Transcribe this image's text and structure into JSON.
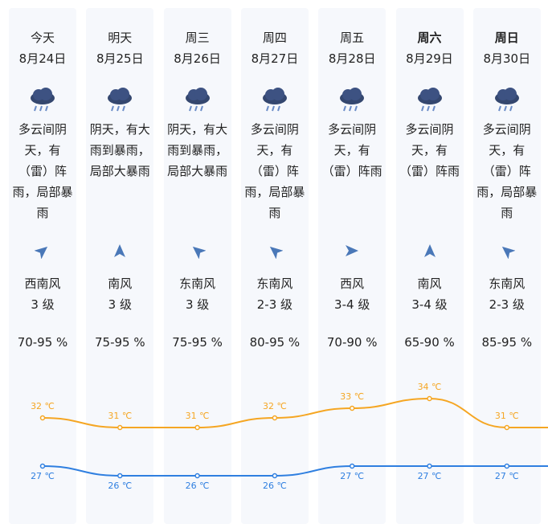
{
  "days": [
    {
      "weekday": "今天",
      "date": "8月24日",
      "weather": [
        "多云间阴",
        "天，有",
        "（雷）阵",
        "雨，局部暴",
        "雨"
      ],
      "wind_direction": "西南风",
      "wind_level": "3 级",
      "humidity": "70-95 %"
    },
    {
      "weekday": "明天",
      "date": "8月25日",
      "weather": [
        "阴天，有大",
        "雨到暴雨，",
        "局部大暴雨"
      ],
      "wind_direction": "南风",
      "wind_level": "3 级",
      "humidity": "75-95 %"
    },
    {
      "weekday": "周三",
      "date": "8月26日",
      "weather": [
        "阴天，有大",
        "雨到暴雨，",
        "局部大暴雨"
      ],
      "wind_direction": "东南风",
      "wind_level": "3 级",
      "humidity": "75-95 %"
    },
    {
      "weekday": "周四",
      "date": "8月27日",
      "weather": [
        "多云间阴",
        "天，有",
        "（雷）阵",
        "雨，局部暴",
        "雨"
      ],
      "wind_direction": "东南风",
      "wind_level": "2-3 级",
      "humidity": "80-95 %"
    },
    {
      "weekday": "周五",
      "date": "8月28日",
      "weather": [
        "多云间阴",
        "天，有",
        "（雷）阵雨"
      ],
      "wind_direction": "西风",
      "wind_level": "3-4 级",
      "humidity": "70-90 %"
    },
    {
      "weekday": "周六",
      "date": "8月29日",
      "weather": [
        "多云间阴",
        "天，有",
        "（雷）阵雨"
      ],
      "wind_direction": "南风",
      "wind_level": "3-4 级",
      "humidity": "65-90 %",
      "bold": true
    },
    {
      "weekday": "周日",
      "date": "8月30日",
      "weather": [
        "多云间阴",
        "天，有",
        "（雷）阵",
        "雨，局部暴",
        "雨"
      ],
      "wind_direction": "东南风",
      "wind_level": "2-3 级",
      "humidity": "85-95 %",
      "bold": true
    }
  ],
  "chart_data": {
    "type": "line",
    "series": [
      {
        "color": "#f5a623",
        "values": [
          32,
          31,
          31,
          32,
          33,
          34,
          31
        ],
        "value_labels": [
          "32 ℃",
          "31 ℃",
          "31 ℃",
          "32 ℃",
          "33 ℃",
          "34 ℃",
          "31 ℃"
        ]
      },
      {
        "color": "#2f7fe0",
        "values": [
          27,
          26,
          26,
          26,
          27,
          27,
          27
        ],
        "value_labels": [
          "27 ℃",
          "26 ℃",
          "26 ℃",
          "26 ℃",
          "27 ℃",
          "27 ℃",
          "27 ℃"
        ]
      }
    ]
  }
}
